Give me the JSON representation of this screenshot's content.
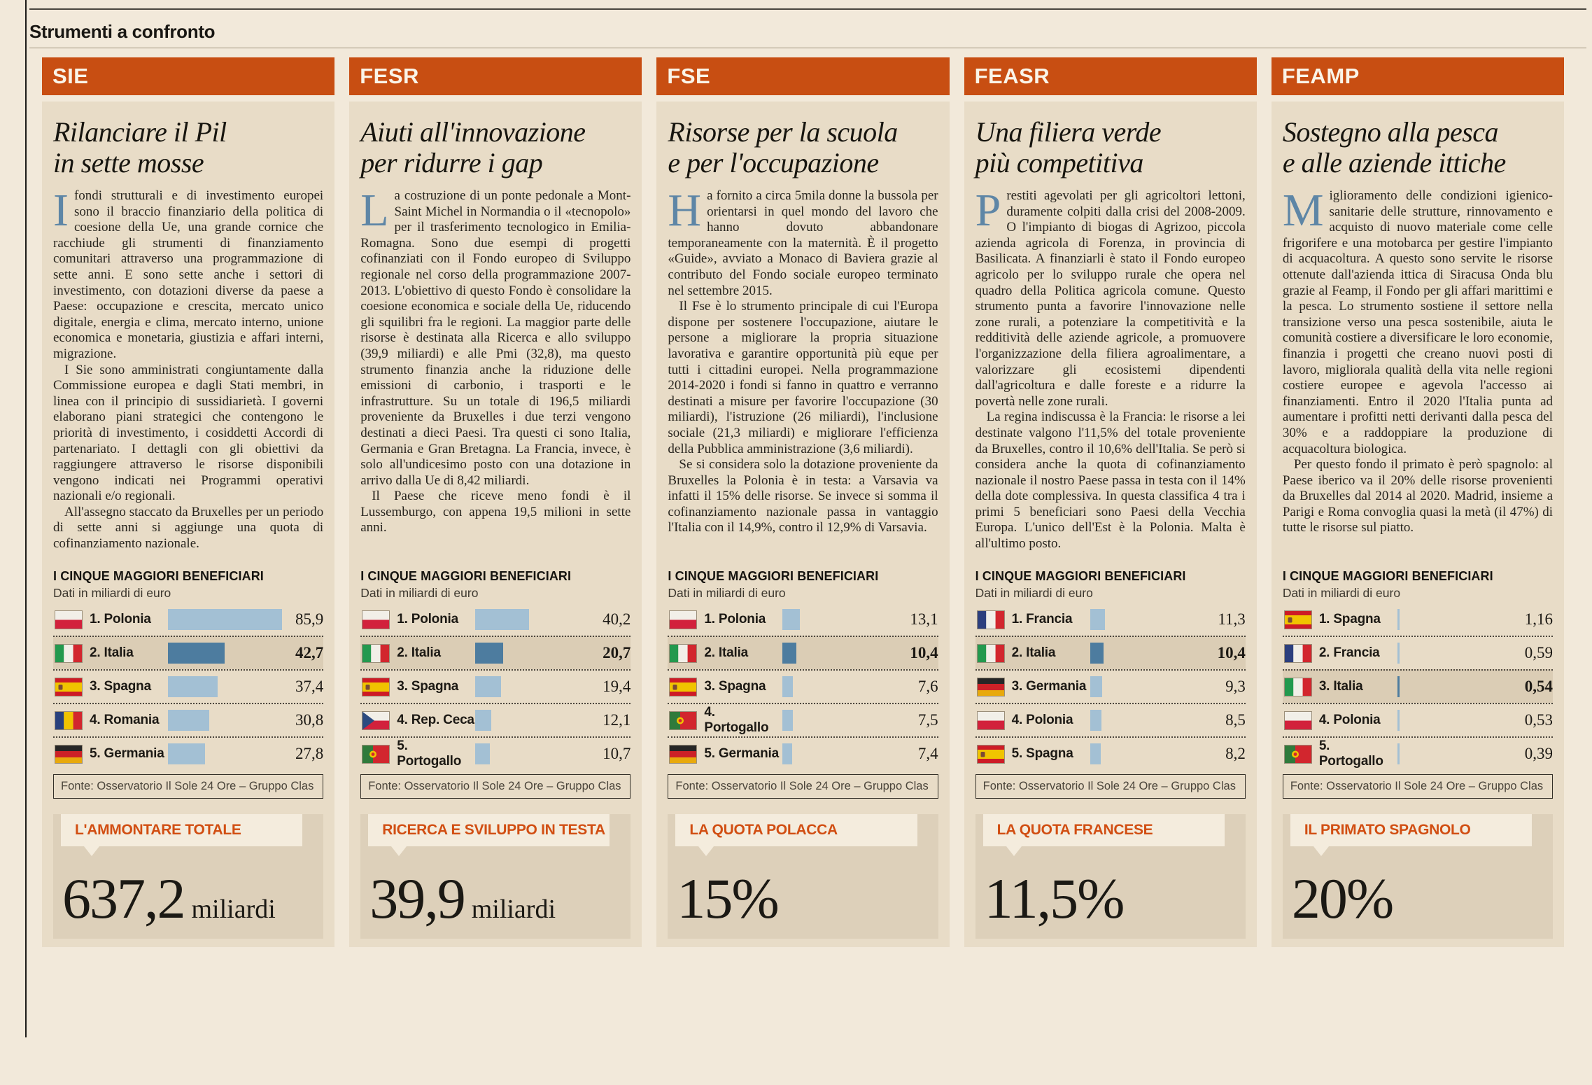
{
  "page": {
    "kicker": "Strumenti a confronto"
  },
  "colors": {
    "accent_orange": "#c84e12",
    "page_bg": "#f2e9da",
    "card_bg": "#e8dcc7",
    "stat_bg": "#ddd0ba",
    "label_bg": "#f4ecdd",
    "bar": "#a3c0d4",
    "bar_highlight": "#4d7c9f",
    "highlight_row_bg": "#dbcdb5",
    "dropcap_blue": "#5e86a6"
  },
  "columns": [
    {
      "acronym": "SIE",
      "headline": "Rilanciare il Pil\nin sette mosse",
      "dropcap": "I",
      "paragraphs": [
        "fondi strutturali e di investimento europei sono il braccio finanziario della politica di coesione della Ue, una grande cornice che racchiude gli strumenti di finanziamento comunitari attraverso una programmazione di sette anni. E sono sette anche i settori di investimento, con dotazioni diverse da paese a Paese: occupazione e crescita, mercato unico digitale, energia e clima, mercato interno, unione economica e monetaria, giustizia e affari interni, migrazione.",
        "I Sie sono amministrati congiuntamente dalla Commissione europea e dagli Stati membri, in linea con il principio di sussidiarietà. I governi elaborano piani strategici che contengono le priorità di investimento, i cosiddetti Accordi di partenariato. I dettagli con gli obiettivi da raggiungere attraverso le risorse disponibili vengono indicati nei Programmi operativi nazionali e/o regionali.",
        "All'assegno staccato da Bruxelles per un periodo di sette anni si aggiunge una quota di cofinanziamento nazionale."
      ],
      "chart": {
        "title": "I CINQUE MAGGIORI BENEFICIARI",
        "subtitle": "Dati in miliardi di euro",
        "source": "Fonte: Osservatorio Il Sole 24 Ore – Gruppo Clas",
        "rows": [
          {
            "rank": "1.",
            "country": "Polonia",
            "flag": "pl",
            "value": "85,9",
            "highlight": false
          },
          {
            "rank": "2.",
            "country": "Italia",
            "flag": "it",
            "value": "42,7",
            "highlight": true
          },
          {
            "rank": "3.",
            "country": "Spagna",
            "flag": "es",
            "value": "37,4",
            "highlight": false
          },
          {
            "rank": "4.",
            "country": "Romania",
            "flag": "ro",
            "value": "30,8",
            "highlight": false
          },
          {
            "rank": "5.",
            "country": "Germania",
            "flag": "de",
            "value": "27,8",
            "highlight": false
          }
        ]
      },
      "stat": {
        "label": "L'AMMONTARE TOTALE",
        "value": "637,2",
        "suffix": "miliardi"
      }
    },
    {
      "acronym": "FESR",
      "headline": "Aiuti all'innovazione\nper ridurre i gap",
      "dropcap": "L",
      "paragraphs": [
        "a costruzione di un ponte pedonale a Mont-Saint Michel in Normandia o il «tecnopolo» per il trasferimento tecnologico in Emilia-Romagna. Sono due esempi di progetti cofinanziati con il Fondo europeo di Sviluppo regionale nel corso della programmazione 2007-2013. L'obiettivo di questo Fondo è consolidare la coesione economica e sociale della Ue, riducendo gli squilibri fra le regioni. La maggior parte delle risorse è destinata alla Ricerca e allo sviluppo (39,9 miliardi) e alle Pmi (32,8), ma questo strumento finanzia anche la riduzione delle emissioni di carbonio, i trasporti e le infrastrutture. Su un totale di 196,5 miliardi proveniente da Bruxelles i due terzi vengono destinati a dieci Paesi. Tra questi ci sono Italia, Germania e Gran Bretagna. La Francia, invece, è solo all'undicesimo posto con una dotazione in arrivo dalla Ue di 8,42 miliardi.",
        "Il Paese che riceve meno fondi è il Lussemburgo, con appena 19,5 milioni in sette anni."
      ],
      "chart": {
        "title": "I CINQUE MAGGIORI BENEFICIARI",
        "subtitle": "Dati in miliardi di euro",
        "source": "Fonte: Osservatorio Il Sole 24 Ore – Gruppo Clas",
        "rows": [
          {
            "rank": "1.",
            "country": "Polonia",
            "flag": "pl",
            "value": "40,2",
            "highlight": false
          },
          {
            "rank": "2.",
            "country": "Italia",
            "flag": "it",
            "value": "20,7",
            "highlight": true
          },
          {
            "rank": "3.",
            "country": "Spagna",
            "flag": "es",
            "value": "19,4",
            "highlight": false
          },
          {
            "rank": "4.",
            "country": "Rep. Ceca",
            "flag": "cz",
            "value": "12,1",
            "highlight": false
          },
          {
            "rank": "5.",
            "country": "Portogallo",
            "flag": "pt",
            "value": "10,7",
            "highlight": false
          }
        ]
      },
      "stat": {
        "label": "RICERCA E SVILUPPO IN TESTA",
        "value": "39,9",
        "suffix": "miliardi"
      }
    },
    {
      "acronym": "FSE",
      "headline": "Risorse per la scuola\ne per l'occupazione",
      "dropcap": "H",
      "paragraphs": [
        "a fornito a circa 5mila donne la bussola per orientarsi in quel mondo del lavoro che hanno dovuto abbandonare temporaneamente con la maternità. È il progetto «Guide», avviato a Monaco di Baviera grazie al contributo del Fondo sociale europeo terminato nel settembre 2015.",
        "Il Fse è lo strumento principale di cui l'Europa dispone per sostenere l'occupazione, aiutare le persone a migliorare la propria situazione lavorativa e garantire opportunità più eque per tutti i cittadini europei. Nella programmazione 2014-2020 i fondi si fanno in quattro e verranno destinati a misure per favorire l'occupazione (30 miliardi), l'istruzione (26 miliardi), l'inclusione sociale (21,3 miliardi) e migliorare l'efficienza della Pubblica amministrazione (3,6 miliardi).",
        "Se si considera solo la dotazione proveniente da Bruxelles la Polonia è in testa: a Varsavia va infatti il 15% delle risorse. Se invece si somma il cofinanziamento nazionale passa in vantaggio l'Italia con il 14,9%, contro il 12,9% di Varsavia."
      ],
      "chart": {
        "title": "I CINQUE MAGGIORI BENEFICIARI",
        "subtitle": "Dati in miliardi di euro",
        "source": "Fonte: Osservatorio Il Sole 24 Ore – Gruppo Clas",
        "rows": [
          {
            "rank": "1.",
            "country": "Polonia",
            "flag": "pl",
            "value": "13,1",
            "highlight": false
          },
          {
            "rank": "2.",
            "country": "Italia",
            "flag": "it",
            "value": "10,4",
            "highlight": true
          },
          {
            "rank": "3.",
            "country": "Spagna",
            "flag": "es",
            "value": "7,6",
            "highlight": false
          },
          {
            "rank": "4.",
            "country": "Portogallo",
            "flag": "pt",
            "value": "7,5",
            "highlight": false
          },
          {
            "rank": "5.",
            "country": "Germania",
            "flag": "de",
            "value": "7,4",
            "highlight": false
          }
        ]
      },
      "stat": {
        "label": "LA QUOTA POLACCA",
        "value": "15%",
        "suffix": ""
      }
    },
    {
      "acronym": "FEASR",
      "headline": "Una filiera verde\npiù competitiva",
      "dropcap": "P",
      "paragraphs": [
        "restiti agevolati per gli agricoltori lettoni, duramente colpiti dalla crisi del 2008-2009. O l'impianto di biogas di Agrizoo, piccola azienda agricola di Forenza, in provincia di Basilicata. A finanziarli è stato il Fondo europeo agricolo per lo sviluppo rurale che opera nel quadro della Politica agricola comune. Questo strumento punta a favorire l'innovazione nelle zone rurali, a potenziare la competitività e la redditività delle aziende agricole, a promuovere l'organizzazione della filiera agroalimentare, a valorizzare gli ecosistemi dipendenti dall'agricoltura e dalle foreste e a ridurre la povertà nelle zone rurali.",
        "La regina indiscussa è la Francia: le risorse a lei destinate valgono l'11,5% del totale proveniente da Bruxelles, contro il 10,6% dell'Italia. Se però si considera anche la quota di cofinanziamento nazionale il nostro Paese passa in testa con il 14% della dote complessiva. In questa classifica 4 tra i primi 5 beneficiari sono Paesi della Vecchia Europa. L'unico dell'Est è la Polonia. Malta è all'ultimo posto."
      ],
      "chart": {
        "title": "I CINQUE MAGGIORI BENEFICIARI",
        "subtitle": "Dati in miliardi di euro",
        "source": "Fonte: Osservatorio Il Sole 24 Ore – Gruppo Clas",
        "rows": [
          {
            "rank": "1.",
            "country": "Francia",
            "flag": "fr",
            "value": "11,3",
            "highlight": false
          },
          {
            "rank": "2.",
            "country": "Italia",
            "flag": "it",
            "value": "10,4",
            "highlight": true
          },
          {
            "rank": "3.",
            "country": "Germania",
            "flag": "de",
            "value": "9,3",
            "highlight": false
          },
          {
            "rank": "4.",
            "country": "Polonia",
            "flag": "pl",
            "value": "8,5",
            "highlight": false
          },
          {
            "rank": "5.",
            "country": "Spagna",
            "flag": "es",
            "value": "8,2",
            "highlight": false
          }
        ]
      },
      "stat": {
        "label": "LA QUOTA FRANCESE",
        "value": "11,5%",
        "suffix": ""
      }
    },
    {
      "acronym": "FEAMP",
      "headline": "Sostegno alla pesca\ne alle aziende ittiche",
      "dropcap": "M",
      "paragraphs": [
        "iglioramento delle condizioni igienico- sanitarie delle strutture, rinnovamento e acquisto di nuovo materiale come celle frigorifere e una motobarca per gestire l'impianto di acquacoltura. A questo sono servite le risorse ottenute dall'azienda ittica di Siracusa Onda blu grazie al Feamp, il Fondo per gli affari marittimi e la pesca. Lo strumento sostiene il settore nella transizione verso una pesca sostenibile, aiuta le comunità costiere a diversificare le loro economie, finanzia i progetti che creano nuovi posti di lavoro, migliorala qualità della vita nelle regioni costiere europee e agevola l'accesso ai finanziamenti. Entro il 2020 l'Italia punta ad aumentare i profitti netti derivanti dalla pesca del 30% e a raddoppiare la produzione di acquacoltura biologica.",
        "Per questo fondo il primato è però spagnolo: al Paese iberico va il 20% delle risorse provenienti da Bruxelles dal 2014 al 2020. Madrid, insieme a Parigi e Roma convoglia quasi la metà (il 47%) di tutte le risorse sul piatto."
      ],
      "chart": {
        "title": "I CINQUE MAGGIORI BENEFICIARI",
        "subtitle": "Dati in miliardi di euro",
        "source": "Fonte: Osservatorio Il Sole 24 Ore – Gruppo Clas",
        "rows": [
          {
            "rank": "1.",
            "country": "Spagna",
            "flag": "es",
            "value": "1,16",
            "highlight": false
          },
          {
            "rank": "2.",
            "country": "Francia",
            "flag": "fr",
            "value": "0,59",
            "highlight": false
          },
          {
            "rank": "3.",
            "country": "Italia",
            "flag": "it",
            "value": "0,54",
            "highlight": true
          },
          {
            "rank": "4.",
            "country": "Polonia",
            "flag": "pl",
            "value": "0,53",
            "highlight": false
          },
          {
            "rank": "5.",
            "country": "Portogallo",
            "flag": "pt",
            "value": "0,39",
            "highlight": false
          }
        ]
      },
      "stat": {
        "label": "IL PRIMATO SPAGNOLO",
        "value": "20%",
        "suffix": ""
      }
    }
  ],
  "chart_data": [
    {
      "type": "bar",
      "title": "SIE – I cinque maggiori beneficiari",
      "unit": "miliardi di euro",
      "categories": [
        "Polonia",
        "Italia",
        "Spagna",
        "Romania",
        "Germania"
      ],
      "values": [
        85.9,
        42.7,
        37.4,
        30.8,
        27.8
      ],
      "highlight": "Italia",
      "callout_label": "L'AMMONTARE TOTALE",
      "callout_value": "637,2 miliardi"
    },
    {
      "type": "bar",
      "title": "FESR – I cinque maggiori beneficiari",
      "unit": "miliardi di euro",
      "categories": [
        "Polonia",
        "Italia",
        "Spagna",
        "Rep. Ceca",
        "Portogallo"
      ],
      "values": [
        40.2,
        20.7,
        19.4,
        12.1,
        10.7
      ],
      "highlight": "Italia",
      "callout_label": "RICERCA E SVILUPPO IN TESTA",
      "callout_value": "39,9 miliardi"
    },
    {
      "type": "bar",
      "title": "FSE – I cinque maggiori beneficiari",
      "unit": "miliardi di euro",
      "categories": [
        "Polonia",
        "Italia",
        "Spagna",
        "Portogallo",
        "Germania"
      ],
      "values": [
        13.1,
        10.4,
        7.6,
        7.5,
        7.4
      ],
      "highlight": "Italia",
      "callout_label": "LA QUOTA POLACCA",
      "callout_value": "15%"
    },
    {
      "type": "bar",
      "title": "FEASR – I cinque maggiori beneficiari",
      "unit": "miliardi di euro",
      "categories": [
        "Francia",
        "Italia",
        "Germania",
        "Polonia",
        "Spagna"
      ],
      "values": [
        11.3,
        10.4,
        9.3,
        8.5,
        8.2
      ],
      "highlight": "Italia",
      "callout_label": "LA QUOTA FRANCESE",
      "callout_value": "11,5%"
    },
    {
      "type": "bar",
      "title": "FEAMP – I cinque maggiori beneficiari",
      "unit": "miliardi di euro",
      "categories": [
        "Spagna",
        "Francia",
        "Italia",
        "Polonia",
        "Portogallo"
      ],
      "values": [
        1.16,
        0.59,
        0.54,
        0.53,
        0.39
      ],
      "highlight": "Italia",
      "callout_label": "IL PRIMATO SPAGNOLO",
      "callout_value": "20%"
    }
  ]
}
